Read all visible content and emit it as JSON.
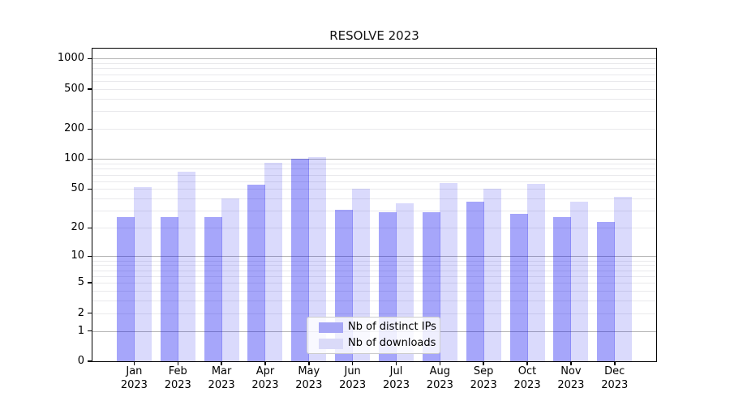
{
  "title": "RESOLVE 2023",
  "chart_data": {
    "type": "bar",
    "title": "RESOLVE 2023",
    "months": [
      "Jan",
      "Feb",
      "Mar",
      "Apr",
      "May",
      "Jun",
      "Jul",
      "Aug",
      "Sep",
      "Oct",
      "Nov",
      "Dec"
    ],
    "year": "2023",
    "series": [
      {
        "key": "distinct-ips",
        "name": "Nb of distinct IPs",
        "color": "#a6a6f6",
        "color_rgba": "rgba(0,0,240,0.35)",
        "values": [
          26,
          26,
          26,
          55,
          100,
          31,
          29,
          29,
          37,
          28,
          26,
          23
        ]
      },
      {
        "key": "downloads",
        "name": "Nb of downloads",
        "color": "#dadaf8",
        "color_rgba": "rgba(0,0,235,0.145)",
        "values": [
          52,
          75,
          40,
          92,
          104,
          50,
          36,
          57,
          50,
          56,
          37,
          42
        ]
      }
    ],
    "y_ticks": [
      0,
      1,
      2,
      5,
      10,
      20,
      50,
      100,
      200,
      500,
      1000
    ],
    "y_scale": "log10(value+1)",
    "ylim": [
      0,
      1280
    ],
    "grid": "horizontal, minor light + major gray at powers of 10",
    "legend_position": "lower center inside plot",
    "colors": {
      "grid_major": "#b4b4b4",
      "grid_minor": "#e9e9ec",
      "spine": "#000000",
      "legend_border": "#cccccc"
    }
  }
}
